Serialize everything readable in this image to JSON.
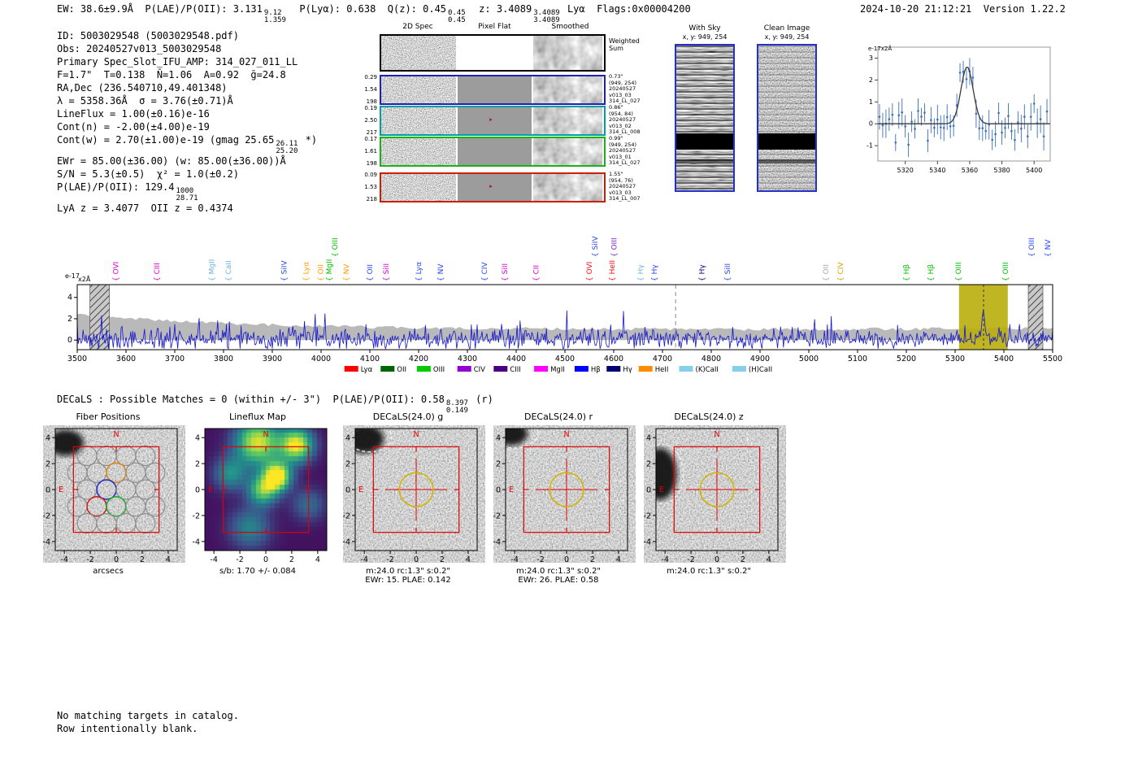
{
  "header": {
    "left": [
      {
        "t": "EW: 38.6±9.9Å  P(LAE)/P(OII): 3.131"
      },
      {
        "frac": [
          "9.12",
          "1.359"
        ]
      },
      {
        "t": "  P(Lyα): 0.638  Q(z): 0.45"
      },
      {
        "frac": [
          "0.45",
          "0.45"
        ]
      },
      {
        "t": "  z: 3.4089"
      },
      {
        "frac": [
          "3.4089",
          "3.4089"
        ]
      },
      {
        "t": " Lyα  Flags:0x00004200"
      }
    ],
    "right": "2024-10-20 21:12:21  Version 1.22.2"
  },
  "info": {
    "lines": [
      [
        {
          "t": "ID: 5003029548 (5003029548.pdf)"
        }
      ],
      [
        {
          "t": "Obs: 20240527v013_5003029548"
        }
      ],
      [
        {
          "t": "Primary Spec_Slot_IFU_AMP: 314_027_011_LL"
        }
      ],
      [
        {
          "t": "F=1.7\"  T=0.138  N̄=1.06  A=0.92  ḡ=24.8"
        }
      ],
      [
        {
          "t": "RA,Dec (236.540710,49.401348)"
        }
      ],
      [
        {
          "t": "λ = 5358.36Å  σ = 3.76(±0.71)Å"
        }
      ],
      [
        {
          "t": "LineFlux = 1.00(±0.16)e-16"
        }
      ],
      [
        {
          "t": "Cont(n) = -2.00(±4.00)e-19"
        }
      ],
      [
        {
          "t": "Cont(w) = 2.70(±1.00)e-19 (gmag 25.65"
        },
        {
          "frac": [
            "26.11",
            "25.20"
          ]
        },
        {
          "t": " *)"
        }
      ],
      [
        {
          "t": "EWr = 85.00(±36.00) (w: 85.00(±36.00))Å"
        }
      ],
      [
        {
          "t": "S/N = 5.3(±0.5)  χ² = 1.0(±0.2)"
        }
      ],
      [
        {
          "t": "P(LAE)/P(OII): 129.4"
        },
        {
          "frac": [
            "1000",
            "28.71"
          ]
        }
      ],
      [
        {
          "t": "LyA z = 3.4077  OII z = 0.4374"
        }
      ]
    ]
  },
  "spec2d": {
    "titles": [
      "2D Spec",
      "Pixel Flat",
      "Smoothed"
    ],
    "weighted_sum": [
      "Weighted",
      "Sum"
    ],
    "rows": [
      {
        "border": "#1f1fbf",
        "left": [
          "0.29",
          "1.54",
          "198"
        ],
        "right": [
          "0.73\"",
          "(949, 254)",
          "20240527",
          "v013_03",
          "314_LL_027"
        ],
        "marker": false
      },
      {
        "border": "#00a0a0",
        "left": [
          "0.19",
          "2.50",
          "217"
        ],
        "right": [
          "0.86\"",
          "(954, 84)",
          "20240527",
          "v013_02",
          "314_LL_008"
        ],
        "marker": true
      },
      {
        "border": "#17b317",
        "left": [
          "0.17",
          "1.61",
          "198"
        ],
        "right": [
          "0.99\"",
          "(949, 254)",
          "20240527",
          "v013_01",
          "314_LL_027"
        ],
        "marker": false
      },
      {
        "border": "#cc1f00",
        "left": [
          "0.09",
          "1.53",
          "218"
        ],
        "right": [
          "1.55\"",
          "(954, 76)",
          "20240527",
          "v013_03",
          "314_LL_007"
        ],
        "marker": true
      }
    ]
  },
  "sky": {
    "with_sky": {
      "title": "With Sky",
      "coords": "x, y: 949, 254"
    },
    "clean": {
      "title": "Clean Image",
      "coords": "x, y: 949, 254"
    }
  },
  "chart_data": [
    {
      "id": "zoom_spectrum",
      "type": "scatter",
      "ylabel": "e-17x2Å",
      "xlim": [
        5303,
        5410
      ],
      "ylim": [
        -1.7,
        3.5
      ],
      "xticks": [
        5320,
        5340,
        5360,
        5380,
        5400
      ],
      "yticks": [
        -1,
        0,
        1,
        2,
        3
      ],
      "gaussian_fit": {
        "mu": 5358.36,
        "sigma": 3.76,
        "amp": 2.6
      },
      "step": 2,
      "noise_sd": 0.42,
      "seed": 42,
      "point_color": "#3b6fb5",
      "fit_color": "#3a3a3a"
    },
    {
      "id": "full_spectrum",
      "type": "line",
      "ylabel": "e-17x2Å",
      "xlim": [
        3500,
        5500
      ],
      "ylim": [
        -0.9,
        5.2
      ],
      "xticks": [
        3500,
        3600,
        3700,
        3800,
        3900,
        4000,
        4100,
        4200,
        4300,
        4400,
        4500,
        4600,
        4700,
        4800,
        4900,
        5000,
        5100,
        5200,
        5300,
        5400,
        5500
      ],
      "yticks": [
        0,
        2,
        4
      ],
      "emission_line": {
        "mu": 5358.36,
        "sigma": 4.0,
        "amp": 2.4
      },
      "seed": 7,
      "noise_sd": 0.4,
      "spike_prob": 0.02,
      "line_color": "#1414cc",
      "noise_fill": "#b9b9b9",
      "band": [
        5308,
        5408
      ],
      "band_color": "#b9ae0c",
      "hatch_bands": [
        [
          3526,
          3566
        ],
        [
          5450,
          5480
        ]
      ],
      "dashed_lines": [
        4727,
        5358.36
      ],
      "line_labels": [
        [
          "OVI",
          3584,
          "#cc00cc",
          0
        ],
        [
          "CIII",
          3668,
          "#cc00cc",
          0
        ],
        [
          "MgII",
          3781,
          "#6ab4d8",
          0
        ],
        [
          "CaII",
          3815,
          "#6ab4d8",
          0
        ],
        [
          "SiIV",
          3929,
          "#2244ee",
          0
        ],
        [
          "Lyα",
          3974,
          "#ff9900",
          0
        ],
        [
          "OII",
          4004,
          "#ff9900",
          0
        ],
        [
          "MgII",
          4022,
          "#00bb00",
          0
        ],
        [
          "OIII",
          4033,
          "#00bb00",
          1
        ],
        [
          "NV",
          4057,
          "#ff9900",
          0
        ],
        [
          "OII",
          4105,
          "#2244ee",
          0
        ],
        [
          "SiII",
          4138,
          "#cc00cc",
          0
        ],
        [
          "Lyα",
          4205,
          "#2244ee",
          0
        ],
        [
          "NV",
          4250,
          "#2244ee",
          0
        ],
        [
          "CIV",
          4340,
          "#2244ee",
          0
        ],
        [
          "SiII",
          4382,
          "#cc00cc",
          0
        ],
        [
          "CII",
          4446,
          "#cc00cc",
          0
        ],
        [
          "OVI",
          4555,
          "#ee1111",
          0
        ],
        [
          "SiIV",
          4567,
          "#2244ee",
          1
        ],
        [
          "HeII",
          4602,
          "#ee1111",
          0
        ],
        [
          "OIII",
          4606,
          "#7a1fcc",
          1
        ],
        [
          "Hγ",
          4660,
          "#6ab4d8",
          0
        ],
        [
          "Hγ",
          4688,
          "#2244ee",
          0
        ],
        [
          "Hγ",
          4786,
          "#000080",
          0
        ],
        [
          "SiII",
          4838,
          "#2244ee",
          0
        ],
        [
          "OII",
          5040,
          "#a8a8a8",
          0
        ],
        [
          "CIV",
          5070,
          "#c8a400",
          0
        ],
        [
          "Hβ",
          5205,
          "#00bb00",
          0
        ],
        [
          "Hβ",
          5255,
          "#00bb00",
          0
        ],
        [
          "OIII",
          5312,
          "#00bb00",
          0
        ],
        [
          "OIII",
          5408,
          "#00bb00",
          0
        ],
        [
          "OIII",
          5462,
          "#2244ee",
          1
        ],
        [
          "NV",
          5495,
          "#2244ee",
          1
        ]
      ],
      "legend": [
        [
          "Lyα",
          "#ff0000"
        ],
        [
          "OII",
          "#006400"
        ],
        [
          "OIII",
          "#00cc00"
        ],
        [
          "CIV",
          "#9400d3"
        ],
        [
          "CIII",
          "#4b0082"
        ],
        [
          "MgII",
          "#ff00ff"
        ],
        [
          "Hβ",
          "#0000ff"
        ],
        [
          "Hγ",
          "#000070"
        ],
        [
          "HeII",
          "#ff8c00"
        ],
        [
          "(K)CaII",
          "#87ceeb"
        ],
        [
          "(H)CaII",
          "#87ceeb"
        ]
      ]
    },
    {
      "id": "lineflux_map",
      "type": "heatmap",
      "title": "Lineflux Map",
      "caption": "s/b: 1.70 +/- 0.084",
      "grid": 26,
      "extent": [
        -4.7,
        4.7
      ],
      "base": 0.05,
      "blobs": [
        [
          -0.6,
          3.6,
          1.2,
          0.9
        ],
        [
          2.4,
          3.4,
          0.9,
          0.95
        ],
        [
          0.9,
          1.0,
          0.75,
          1.05
        ],
        [
          -0.2,
          -0.1,
          0.8,
          0.7
        ],
        [
          -2.7,
          1.2,
          0.9,
          0.45
        ],
        [
          -1.2,
          -3.0,
          1.1,
          0.4
        ],
        [
          3.3,
          -1.2,
          0.9,
          0.3
        ]
      ]
    }
  ],
  "decals_header": [
    {
      "t": "DECaLS : Possible Matches = 0 (within +/- 3\")  P(LAE)/P(OII): 0.58"
    },
    {
      "frac": [
        "8.397",
        "0.149"
      ]
    },
    {
      "t": " (r)"
    }
  ],
  "cutouts": [
    {
      "type": "fibers",
      "title": "Fiber Positions",
      "xlabel": "arcsecs",
      "square": 3.3,
      "fiber_radius": 0.75,
      "fibers": [
        [
          -2.25,
          2.6,
          ""
        ],
        [
          -0.75,
          2.6,
          ""
        ],
        [
          0.75,
          2.6,
          ""
        ],
        [
          2.25,
          2.6,
          ""
        ],
        [
          -3.0,
          1.3,
          ""
        ],
        [
          -1.5,
          1.3,
          ""
        ],
        [
          0.0,
          1.3,
          "#dd8811"
        ],
        [
          1.5,
          1.3,
          ""
        ],
        [
          3.0,
          1.3,
          ""
        ],
        [
          -2.25,
          0,
          ""
        ],
        [
          -0.75,
          0,
          "#2233cc"
        ],
        [
          0.75,
          0,
          ""
        ],
        [
          2.25,
          0,
          ""
        ],
        [
          -3.0,
          -1.3,
          ""
        ],
        [
          -1.5,
          -1.3,
          "#cc2222"
        ],
        [
          0.0,
          -1.3,
          "#22aa33"
        ],
        [
          1.5,
          -1.3,
          ""
        ],
        [
          3.0,
          -1.3,
          ""
        ],
        [
          -2.25,
          -2.6,
          ""
        ],
        [
          -0.75,
          -2.6,
          ""
        ],
        [
          0.75,
          -2.6,
          ""
        ],
        [
          2.25,
          -2.6,
          ""
        ]
      ],
      "blob": [
        -3.9,
        3.6,
        1.4,
        1.0
      ]
    },
    {
      "type": "lineflux",
      "title": "Lineflux Map",
      "caption1": "s/b: 1.70 +/- 0.084"
    },
    {
      "type": "decals",
      "title": "DECaLS(24.0) g",
      "caption1": "m:24.0 rc:1.3\"  s:0.2\"",
      "caption2": "EWr: 15. PLAE: 0.142",
      "blob": [
        -4.0,
        3.9,
        1.5,
        1.1
      ],
      "dashed": [
        [
          -3.6,
          4.1,
          1.7,
          1.2
        ]
      ]
    },
    {
      "type": "decals",
      "title": "DECaLS(24.0) r",
      "caption1": "m:24.0 rc:1.3\"  s:0.2\"",
      "caption2": "EWr: 26. PLAE: 0.58",
      "blob": [
        -4.3,
        4.3,
        1.3,
        0.9
      ],
      "dashed": [
        [
          -4.0,
          4.4,
          1.8,
          1.2
        ],
        [
          3.9,
          -0.1,
          1.0,
          0.8
        ]
      ]
    },
    {
      "type": "decals",
      "title": "DECaLS(24.0) z",
      "caption1": "m:24.0 rc:1.3\"  s:0.2\"",
      "blob": [
        -4.4,
        1.2,
        1.3,
        2.0
      ],
      "dashed": [
        [
          -4.2,
          1.2,
          1.6,
          2.3
        ],
        [
          3.8,
          4.2,
          1.5,
          1.0
        ]
      ]
    }
  ],
  "footer": [
    "No matching targets in catalog.",
    "Row intentionally blank."
  ]
}
